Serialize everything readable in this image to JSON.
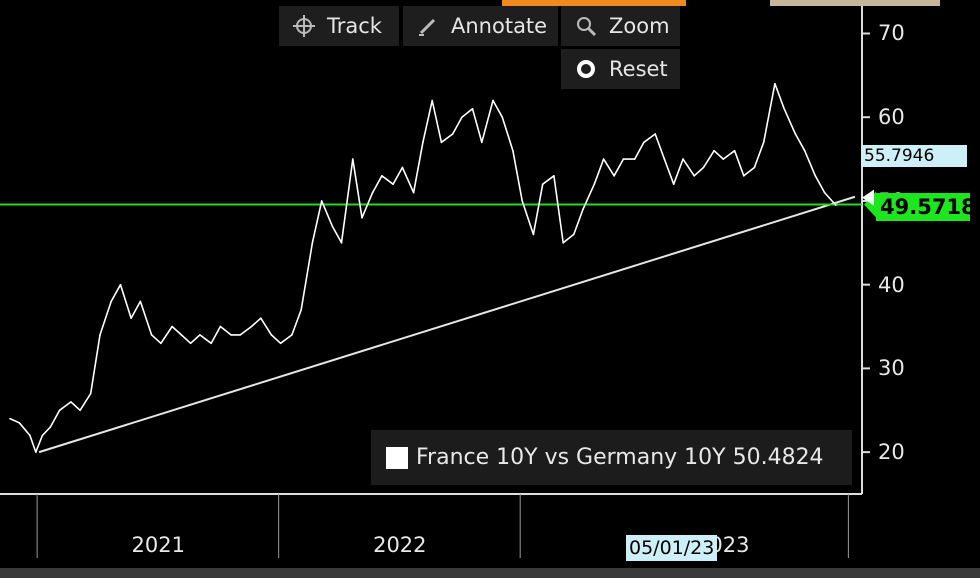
{
  "toolbar": {
    "track_label": "Track",
    "annotate_label": "Annotate",
    "zoom_label": "Zoom",
    "reset_label": "Reset"
  },
  "legend": {
    "text": "France 10Y vs Germany 10Y 50.4824"
  },
  "tags": {
    "last_value": "55.7946",
    "hline_value": "49.5718",
    "cursor_date": "05/01/23"
  },
  "colors": {
    "background": "#000000",
    "series": "#ffffff",
    "hline": "#22dd22",
    "trendline": "#e6e6e6",
    "tag_light": "#cdeff7",
    "tag_green": "#1ee61e",
    "orange_strip": "#f08a1e"
  },
  "chart_data": {
    "type": "line",
    "title": "",
    "xlabel": "",
    "ylabel": "",
    "ylim": [
      15,
      74
    ],
    "xlim": [
      "2020-06-01",
      "2023-11-30"
    ],
    "x_tick_labels": [
      "2021",
      "2022",
      "2023"
    ],
    "y_tick_labels": [
      "20",
      "30",
      "40",
      "50",
      "60",
      "70"
    ],
    "y_ticks": [
      20,
      30,
      40,
      50,
      60,
      70
    ],
    "series": [
      {
        "name": "France 10Y vs Germany 10Y",
        "x": [
          "2020-06-01",
          "2020-06-15",
          "2020-07-01",
          "2020-07-10",
          "2020-07-20",
          "2020-08-01",
          "2020-08-15",
          "2020-09-01",
          "2020-09-15",
          "2020-10-01",
          "2020-10-15",
          "2020-11-01",
          "2020-11-15",
          "2020-12-01",
          "2020-12-15",
          "2021-01-01",
          "2021-01-15",
          "2021-02-01",
          "2021-02-15",
          "2021-03-01",
          "2021-03-15",
          "2021-04-01",
          "2021-04-15",
          "2021-05-01",
          "2021-05-15",
          "2021-06-01",
          "2021-06-15",
          "2021-07-01",
          "2021-07-15",
          "2021-08-01",
          "2021-08-15",
          "2021-09-01",
          "2021-09-15",
          "2021-10-01",
          "2021-10-15",
          "2021-11-01",
          "2021-11-15",
          "2021-12-01",
          "2021-12-15",
          "2022-01-01",
          "2022-01-15",
          "2022-02-01",
          "2022-02-15",
          "2022-03-01",
          "2022-03-15",
          "2022-04-01",
          "2022-04-15",
          "2022-05-01",
          "2022-05-15",
          "2022-06-01",
          "2022-06-15",
          "2022-07-01",
          "2022-07-15",
          "2022-08-01",
          "2022-08-15",
          "2022-09-01",
          "2022-09-15",
          "2022-10-01",
          "2022-10-15",
          "2022-11-01",
          "2022-11-15",
          "2022-12-01",
          "2022-12-15",
          "2023-01-01",
          "2023-01-15",
          "2023-02-01",
          "2023-02-15",
          "2023-03-01",
          "2023-03-15",
          "2023-04-01",
          "2023-04-15",
          "2023-05-01",
          "2023-05-15",
          "2023-06-01",
          "2023-06-15",
          "2023-07-01",
          "2023-07-15",
          "2023-08-01",
          "2023-08-15",
          "2023-09-01",
          "2023-09-15",
          "2023-10-01",
          "2023-10-15",
          "2023-11-01"
        ],
        "values": [
          24,
          23.5,
          22,
          20,
          22,
          23,
          25,
          26,
          25,
          27,
          34,
          38,
          40,
          36,
          38,
          34,
          33,
          35,
          34,
          33,
          34,
          33,
          35,
          34,
          34,
          35,
          36,
          34,
          33,
          34,
          37,
          45,
          50,
          47,
          45,
          55,
          48,
          51,
          53,
          52,
          54,
          51,
          57,
          62,
          57,
          58,
          60,
          61,
          57,
          62,
          60,
          56,
          50,
          46,
          52,
          53,
          45,
          46,
          49,
          52,
          55,
          53,
          55,
          55,
          57,
          58,
          55,
          52,
          55,
          53,
          54,
          56,
          55,
          56,
          53,
          54,
          57,
          64,
          61,
          58,
          56,
          53,
          51,
          49.5
        ]
      }
    ],
    "reference_lines": [
      {
        "type": "horizontal",
        "value": 49.5718
      },
      {
        "type": "trend",
        "from": {
          "x": "2020-07-15",
          "y": 20
        },
        "to": {
          "x": "2023-11-30",
          "y": 50.5
        }
      }
    ],
    "grid": false,
    "legend_position": "bottom-right"
  }
}
